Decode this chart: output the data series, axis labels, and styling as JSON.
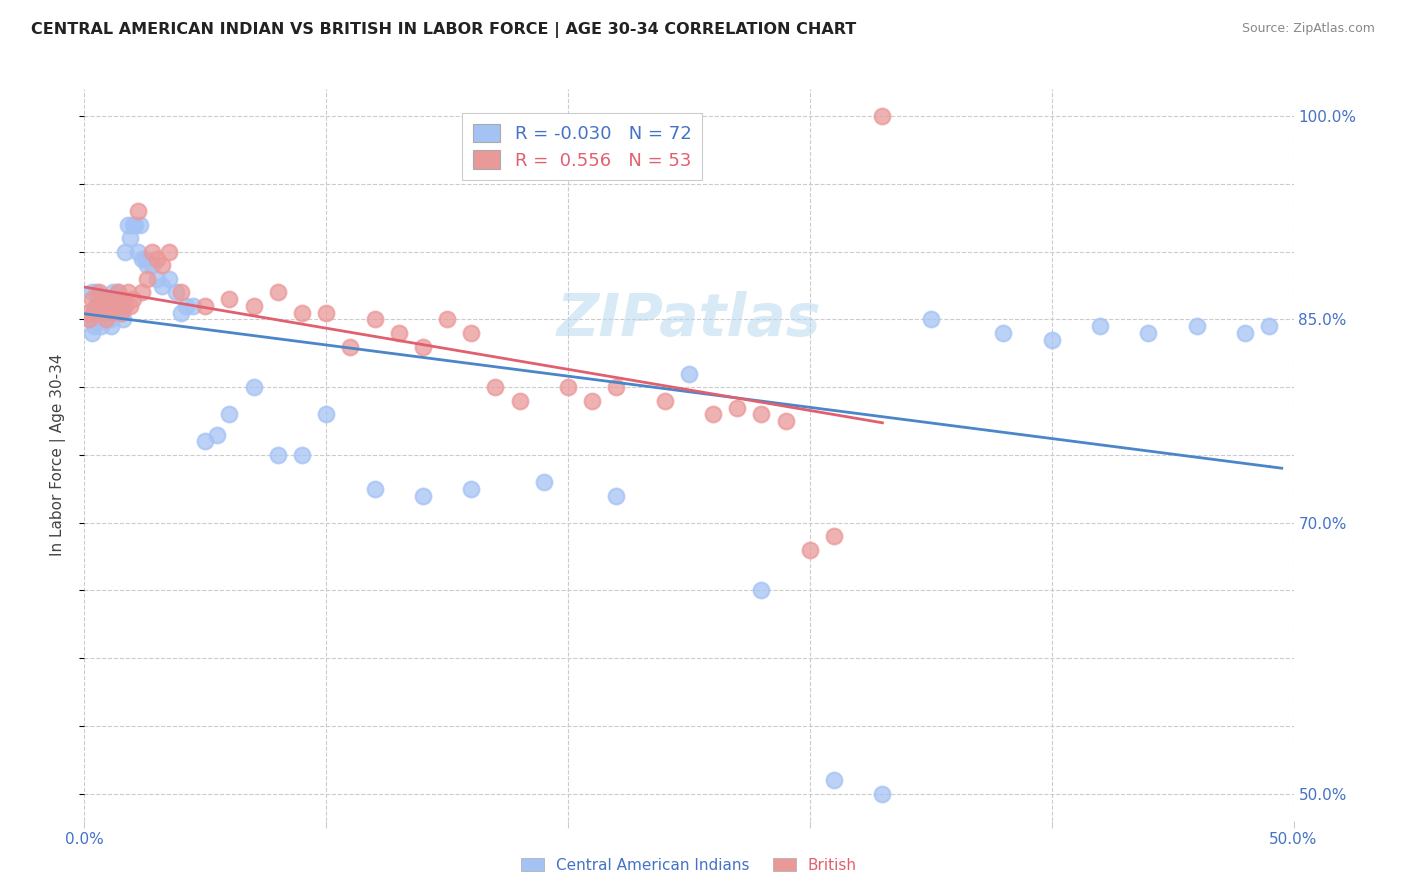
{
  "title": "CENTRAL AMERICAN INDIAN VS BRITISH IN LABOR FORCE | AGE 30-34 CORRELATION CHART",
  "source": "Source: ZipAtlas.com",
  "ylabel": "In Labor Force | Age 30-34",
  "xlim": [
    0.0,
    0.5
  ],
  "ylim": [
    0.48,
    1.02
  ],
  "legend_r_blue": "-0.030",
  "legend_n_blue": "72",
  "legend_r_pink": "0.556",
  "legend_n_pink": "53",
  "blue_color": "#a4c2f4",
  "pink_color": "#ea9999",
  "blue_line_color": "#4a86c8",
  "pink_line_color": "#e06070",
  "blue_scatter_x": [
    0.001,
    0.002,
    0.003,
    0.003,
    0.004,
    0.004,
    0.005,
    0.005,
    0.006,
    0.006,
    0.007,
    0.007,
    0.008,
    0.008,
    0.009,
    0.009,
    0.01,
    0.01,
    0.011,
    0.011,
    0.012,
    0.012,
    0.013,
    0.013,
    0.014,
    0.014,
    0.015,
    0.015,
    0.016,
    0.016,
    0.017,
    0.018,
    0.019,
    0.02,
    0.021,
    0.022,
    0.023,
    0.024,
    0.025,
    0.026,
    0.028,
    0.03,
    0.032,
    0.035,
    0.038,
    0.04,
    0.042,
    0.045,
    0.05,
    0.055,
    0.06,
    0.07,
    0.08,
    0.09,
    0.1,
    0.12,
    0.14,
    0.16,
    0.19,
    0.22,
    0.25,
    0.28,
    0.31,
    0.33,
    0.35,
    0.38,
    0.4,
    0.42,
    0.44,
    0.46,
    0.48,
    0.49
  ],
  "blue_scatter_y": [
    0.855,
    0.85,
    0.87,
    0.84,
    0.855,
    0.845,
    0.86,
    0.87,
    0.85,
    0.86,
    0.845,
    0.855,
    0.86,
    0.85,
    0.865,
    0.855,
    0.86,
    0.855,
    0.85,
    0.845,
    0.87,
    0.86,
    0.855,
    0.865,
    0.87,
    0.86,
    0.865,
    0.855,
    0.86,
    0.85,
    0.9,
    0.92,
    0.91,
    0.92,
    0.92,
    0.9,
    0.92,
    0.895,
    0.895,
    0.89,
    0.89,
    0.88,
    0.875,
    0.88,
    0.87,
    0.855,
    0.86,
    0.86,
    0.76,
    0.765,
    0.78,
    0.8,
    0.75,
    0.75,
    0.78,
    0.725,
    0.72,
    0.725,
    0.73,
    0.72,
    0.81,
    0.65,
    0.51,
    0.5,
    0.85,
    0.84,
    0.835,
    0.845,
    0.84,
    0.845,
    0.84,
    0.845
  ],
  "pink_scatter_x": [
    0.001,
    0.002,
    0.003,
    0.004,
    0.005,
    0.006,
    0.007,
    0.008,
    0.009,
    0.01,
    0.011,
    0.012,
    0.013,
    0.014,
    0.015,
    0.016,
    0.017,
    0.018,
    0.019,
    0.02,
    0.022,
    0.024,
    0.026,
    0.028,
    0.03,
    0.032,
    0.035,
    0.04,
    0.05,
    0.06,
    0.07,
    0.08,
    0.09,
    0.1,
    0.11,
    0.12,
    0.13,
    0.14,
    0.15,
    0.16,
    0.17,
    0.18,
    0.2,
    0.21,
    0.22,
    0.24,
    0.26,
    0.27,
    0.28,
    0.29,
    0.3,
    0.31,
    0.33
  ],
  "pink_scatter_y": [
    0.855,
    0.85,
    0.865,
    0.855,
    0.86,
    0.87,
    0.855,
    0.865,
    0.85,
    0.86,
    0.855,
    0.865,
    0.86,
    0.87,
    0.855,
    0.865,
    0.86,
    0.87,
    0.86,
    0.865,
    0.93,
    0.87,
    0.88,
    0.9,
    0.895,
    0.89,
    0.9,
    0.87,
    0.86,
    0.865,
    0.86,
    0.87,
    0.855,
    0.855,
    0.83,
    0.85,
    0.84,
    0.83,
    0.85,
    0.84,
    0.8,
    0.79,
    0.8,
    0.79,
    0.8,
    0.79,
    0.78,
    0.785,
    0.78,
    0.775,
    0.68,
    0.69,
    1.0
  ],
  "ytick_vals": [
    0.5,
    0.55,
    0.6,
    0.65,
    0.7,
    0.75,
    0.8,
    0.85,
    0.9,
    0.95,
    1.0
  ],
  "ytick_labels": [
    "50.0%",
    "",
    "",
    "",
    "70.0%",
    "",
    "",
    "85.0%",
    "",
    "",
    "100.0%"
  ],
  "xtick_vals": [
    0.0,
    0.1,
    0.2,
    0.3,
    0.4,
    0.5
  ],
  "xtick_labels": [
    "0.0%",
    "",
    "",
    "",
    "",
    "50.0%"
  ]
}
